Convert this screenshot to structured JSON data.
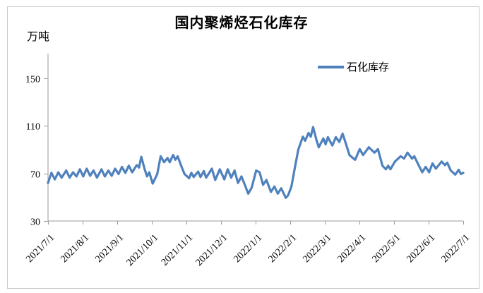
{
  "window": {
    "background_color": "#ffffff",
    "frame_border_color": "#c9c9c9"
  },
  "chart_data": {
    "type": "line",
    "title": "国内聚烯烃石化库存",
    "unit_label": "万吨",
    "xlabel": "",
    "ylabel": "万吨",
    "ylim": [
      30,
      150
    ],
    "yticks": [
      150,
      110,
      70,
      30
    ],
    "xtick_labels": [
      "2021/7/1",
      "2021/8/1",
      "2021/9/1",
      "2021/10/1",
      "2021/11/1",
      "2021/12/1",
      "2022/1/1",
      "2022/2/1",
      "2022/3/1",
      "2022/4/1",
      "2022/5/1",
      "2022/6/1",
      "2022/7/1"
    ],
    "x_range_days": 365,
    "x_start_label": "2021/7/1",
    "grid": false,
    "legend_position": "upper-right-inside",
    "axis_color": "#9a9a9a",
    "series": [
      {
        "name": "石化库存",
        "color": "#4F81BD",
        "points_format": "[days_since_2021-7-1, value_in_wan_dun]",
        "points": [
          [
            0,
            62
          ],
          [
            3,
            70.5
          ],
          [
            6,
            65
          ],
          [
            9,
            71
          ],
          [
            12,
            66.5
          ],
          [
            16,
            72.5
          ],
          [
            19,
            66.5
          ],
          [
            22,
            71
          ],
          [
            25,
            67.5
          ],
          [
            28,
            73.5
          ],
          [
            31,
            67.5
          ],
          [
            34,
            74
          ],
          [
            37,
            68
          ],
          [
            40,
            72.5
          ],
          [
            43,
            66.5
          ],
          [
            47,
            73.5
          ],
          [
            50,
            67.5
          ],
          [
            53,
            72.5
          ],
          [
            56,
            68
          ],
          [
            59,
            74
          ],
          [
            62,
            69.5
          ],
          [
            65,
            75.5
          ],
          [
            68,
            70.5
          ],
          [
            71,
            76.5
          ],
          [
            74,
            71
          ],
          [
            78,
            77
          ],
          [
            80,
            75
          ],
          [
            82,
            84
          ],
          [
            85,
            73.5
          ],
          [
            87,
            67.5
          ],
          [
            89,
            71
          ],
          [
            92,
            61.5
          ],
          [
            96,
            69.5
          ],
          [
            99,
            84.5
          ],
          [
            102,
            79.5
          ],
          [
            105,
            83
          ],
          [
            107,
            79.5
          ],
          [
            110,
            85.5
          ],
          [
            112,
            81.5
          ],
          [
            114,
            84.5
          ],
          [
            117,
            76.5
          ],
          [
            120,
            69.5
          ],
          [
            124,
            66
          ],
          [
            126,
            70.5
          ],
          [
            128,
            67
          ],
          [
            132,
            71.5
          ],
          [
            134,
            67
          ],
          [
            137,
            72
          ],
          [
            139,
            66.5
          ],
          [
            142,
            71
          ],
          [
            144,
            74
          ],
          [
            147,
            64.5
          ],
          [
            151,
            73.5
          ],
          [
            155,
            65
          ],
          [
            158,
            73.5
          ],
          [
            161,
            66.5
          ],
          [
            164,
            72.5
          ],
          [
            167,
            62
          ],
          [
            170,
            67.5
          ],
          [
            173,
            60.5
          ],
          [
            176,
            53
          ],
          [
            179,
            58
          ],
          [
            183,
            72.5
          ],
          [
            186,
            71
          ],
          [
            189,
            60.5
          ],
          [
            192,
            64.5
          ],
          [
            196,
            54.5
          ],
          [
            199,
            59
          ],
          [
            202,
            53
          ],
          [
            205,
            57.5
          ],
          [
            209,
            49.5
          ],
          [
            211,
            51.5
          ],
          [
            214,
            59
          ],
          [
            217,
            75
          ],
          [
            220,
            90
          ],
          [
            224,
            101
          ],
          [
            226,
            97.5
          ],
          [
            229,
            104
          ],
          [
            231,
            101
          ],
          [
            233,
            109
          ],
          [
            236,
            98
          ],
          [
            238,
            92
          ],
          [
            242,
            99.5
          ],
          [
            244,
            94.5
          ],
          [
            246,
            100.5
          ],
          [
            250,
            93.5
          ],
          [
            253,
            100.5
          ],
          [
            256,
            96.5
          ],
          [
            259,
            103.5
          ],
          [
            262,
            94.5
          ],
          [
            265,
            85.5
          ],
          [
            268,
            83
          ],
          [
            270,
            81.5
          ],
          [
            274,
            90.5
          ],
          [
            277,
            85.5
          ],
          [
            282,
            92
          ],
          [
            287,
            87.5
          ],
          [
            290,
            90.5
          ],
          [
            294,
            76.5
          ],
          [
            297,
            73.5
          ],
          [
            299,
            76.5
          ],
          [
            301,
            73.5
          ],
          [
            305,
            80
          ],
          [
            310,
            84.5
          ],
          [
            313,
            82.5
          ],
          [
            316,
            87.5
          ],
          [
            320,
            82.5
          ],
          [
            322,
            84.5
          ],
          [
            326,
            76.5
          ],
          [
            329,
            71
          ],
          [
            332,
            75.5
          ],
          [
            335,
            71
          ],
          [
            338,
            78.5
          ],
          [
            341,
            74
          ],
          [
            346,
            80
          ],
          [
            349,
            77
          ],
          [
            351,
            79
          ],
          [
            354,
            72.5
          ],
          [
            358,
            69
          ],
          [
            361,
            73
          ],
          [
            363,
            69.5
          ],
          [
            365,
            70.5
          ]
        ]
      }
    ]
  }
}
